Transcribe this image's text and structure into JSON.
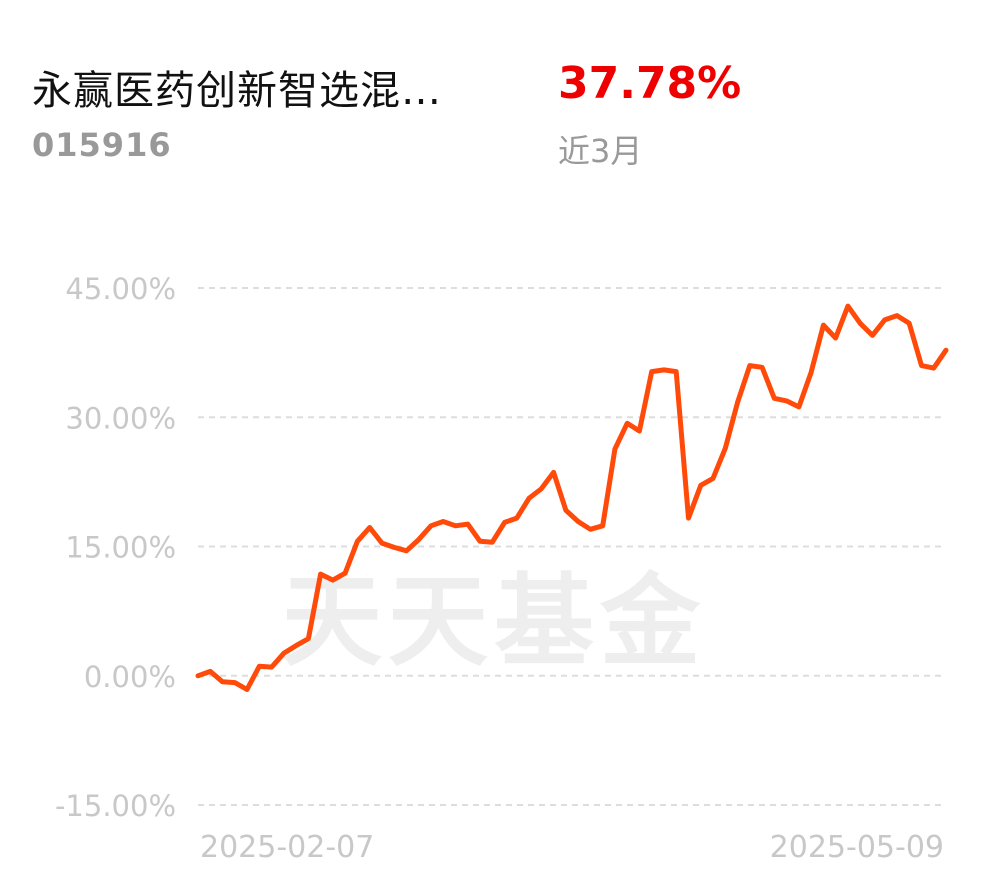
{
  "header": {
    "fund_name": "永赢医药创新智选混…",
    "fund_code": "015916",
    "return_value": "37.78%",
    "return_period": "近3月"
  },
  "watermark": "天天基金",
  "colors": {
    "line": "#ff4a0a",
    "return_text": "#ee0000",
    "grid": "#dddddd",
    "axis_text": "#c8c8c8"
  },
  "chart_data": {
    "type": "line",
    "x_start": "2025-02-07",
    "x_end": "2025-05-09",
    "x_tick_labels": [
      "2025-02-07",
      "2025-05-09"
    ],
    "y_tick_labels": [
      "45.00%",
      "30.00%",
      "15.00%",
      "0.00%",
      "-15.00%"
    ],
    "y_ticks": [
      45,
      30,
      15,
      0,
      -15
    ],
    "ylim": [
      -15,
      45
    ],
    "grid": true,
    "series": [
      {
        "values": [
          0.0,
          0.5,
          -0.7,
          -0.8,
          -1.6,
          1.1,
          1.0,
          2.6,
          3.5,
          4.3,
          11.8,
          11.1,
          11.9,
          15.6,
          17.2,
          15.4,
          14.9,
          14.5,
          15.8,
          17.4,
          17.9,
          17.4,
          17.6,
          15.6,
          15.5,
          17.8,
          18.3,
          20.6,
          21.7,
          23.6,
          19.2,
          17.9,
          17.0,
          17.4,
          26.3,
          29.3,
          28.4,
          35.3,
          35.5,
          35.3,
          18.3,
          22.1,
          22.9,
          26.4,
          31.7,
          36.0,
          35.8,
          32.2,
          31.9,
          31.2,
          35.2,
          40.7,
          39.2,
          42.9,
          40.9,
          39.5,
          41.3,
          41.8,
          40.9,
          36.0,
          35.7,
          37.78
        ]
      }
    ]
  }
}
